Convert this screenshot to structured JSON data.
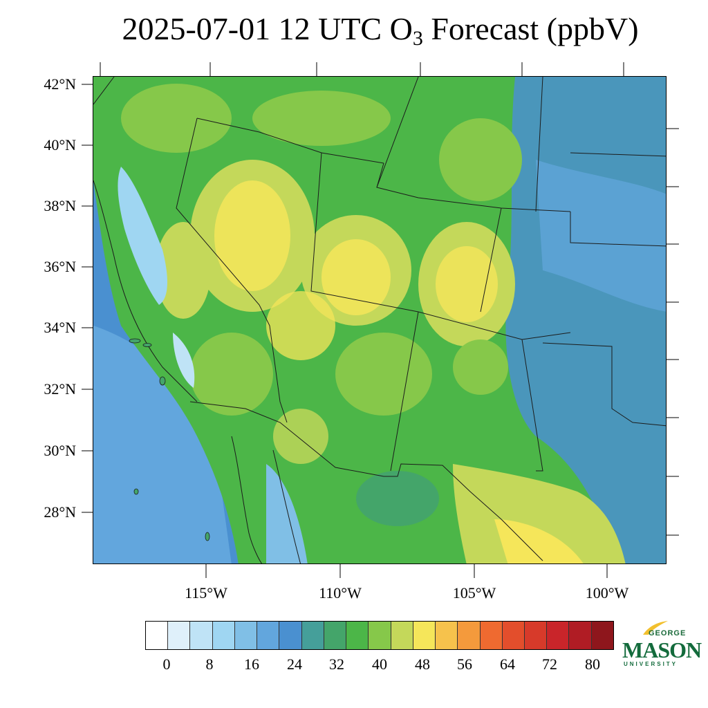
{
  "title": {
    "date": "2025-07-01",
    "hour": "12 UTC",
    "species_main": "O",
    "species_sub": "3",
    "suffix": "Forecast (ppbV)"
  },
  "map": {
    "lat_labels": [
      "42°N",
      "40°N",
      "38°N",
      "36°N",
      "34°N",
      "32°N",
      "30°N",
      "28°N"
    ],
    "lon_labels": [
      "115°W",
      "110°W",
      "105°W",
      "100°W"
    ]
  },
  "colorbar": {
    "colors": [
      "#ffffff",
      "#dff0fa",
      "#bfe3f6",
      "#9fd6f2",
      "#80bfe6",
      "#62a6dd",
      "#4a90d0",
      "#459f9a",
      "#44a56a",
      "#4cb648",
      "#86c84a",
      "#c4d85a",
      "#f5e65a",
      "#f6c24c",
      "#f49a3c",
      "#ef6a30",
      "#e34e2c",
      "#d73a2a",
      "#c9252a",
      "#b01c24",
      "#8e161c"
    ],
    "labels": [
      "0",
      "8",
      "16",
      "24",
      "32",
      "40",
      "48",
      "56",
      "64",
      "72",
      "80"
    ]
  },
  "logo": {
    "top": "GEORGE",
    "main": "MASON",
    "bottom": "UNIVERSITY",
    "accent_color": "#136b3c",
    "swoosh_color": "#f2c02e"
  }
}
